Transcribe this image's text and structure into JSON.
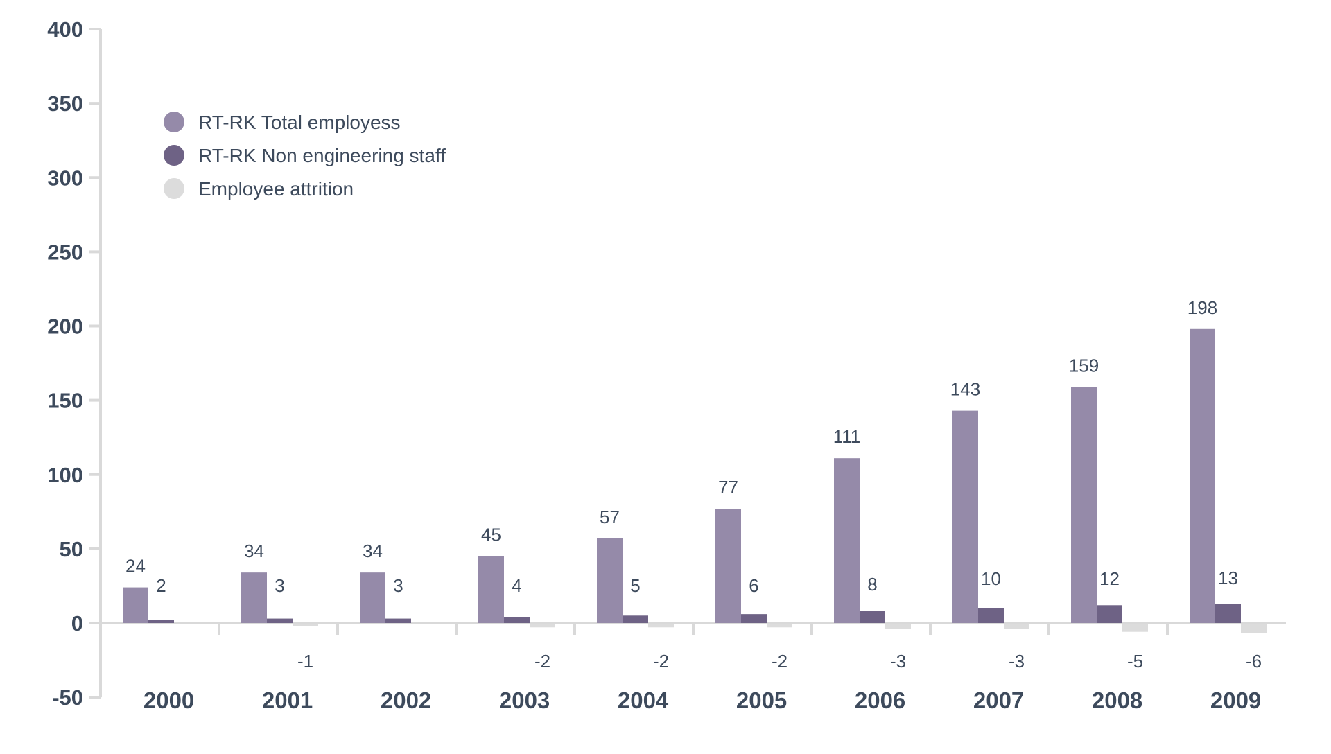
{
  "chart_data": {
    "type": "bar",
    "title": "",
    "xlabel": "",
    "ylabel": "",
    "ylim": [
      -50,
      400
    ],
    "yticks": [
      "400",
      "350",
      "300",
      "250",
      "200",
      "150",
      "100",
      "50",
      "0",
      "-50"
    ],
    "ytick_values": [
      400,
      350,
      300,
      250,
      200,
      150,
      100,
      50,
      0,
      -50
    ],
    "grid": false,
    "legend_position": "top-left",
    "categories": [
      "2000",
      "2001",
      "2002",
      "2003",
      "2004",
      "2005",
      "2006",
      "2007",
      "2008",
      "2009"
    ],
    "series": [
      {
        "name": "RT-RK Total employess",
        "color": "#958aa9",
        "values": [
          24,
          34,
          34,
          45,
          57,
          77,
          111,
          143,
          159,
          198
        ],
        "labels": [
          "24",
          "34",
          "34",
          "45",
          "57",
          "77",
          "111",
          "143",
          "159",
          "198"
        ]
      },
      {
        "name": "RT-RK Non engineering staff",
        "color": "#6e6285",
        "values": [
          2,
          3,
          3,
          4,
          5,
          6,
          8,
          10,
          12,
          13
        ],
        "labels": [
          "2",
          "3",
          "3",
          "4",
          "5",
          "6",
          "8",
          "10",
          "12",
          "13"
        ]
      },
      {
        "name": "Employee attrition",
        "color": "#dcdcdc",
        "values": [
          0,
          -1,
          0,
          -2,
          -2,
          -2,
          -3,
          -3,
          -5,
          -6
        ],
        "labels": [
          "",
          "-1",
          "",
          "-2",
          "-2",
          "-2",
          "-3",
          "-3",
          "-5",
          "-6"
        ]
      }
    ]
  }
}
